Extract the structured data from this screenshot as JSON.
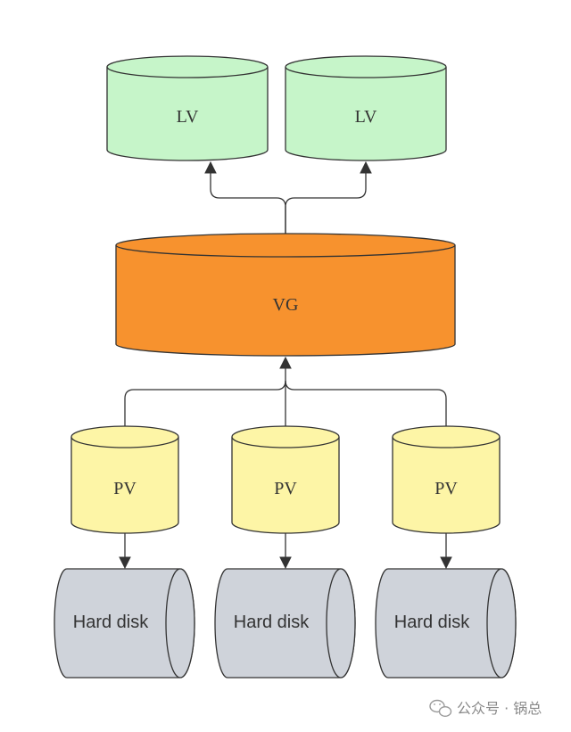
{
  "colors": {
    "lv_fill": "#c6f5c9",
    "vg_fill": "#f7922e",
    "pv_fill": "#fdf5a6",
    "disk_fill": "#cfd3da",
    "stroke": "#333333",
    "edge": "#333333"
  },
  "nodes": {
    "lv": [
      {
        "label": "LV"
      },
      {
        "label": "LV"
      }
    ],
    "vg": {
      "label": "VG"
    },
    "pv": [
      {
        "label": "PV"
      },
      {
        "label": "PV"
      },
      {
        "label": "PV"
      }
    ],
    "disks": [
      {
        "label": "Hard disk"
      },
      {
        "label": "Hard disk"
      },
      {
        "label": "Hard disk"
      }
    ]
  },
  "edges": [
    {
      "from": "vg",
      "to": "lv.0"
    },
    {
      "from": "vg",
      "to": "lv.1"
    },
    {
      "from": "pv.0",
      "to": "vg"
    },
    {
      "from": "pv.1",
      "to": "vg"
    },
    {
      "from": "pv.2",
      "to": "vg"
    },
    {
      "from": "pv.0",
      "to": "disks.0"
    },
    {
      "from": "pv.1",
      "to": "disks.1"
    },
    {
      "from": "pv.2",
      "to": "disks.2"
    }
  ],
  "watermark": {
    "icon": "wechat-icon",
    "text": "公众号 · 锅总"
  }
}
